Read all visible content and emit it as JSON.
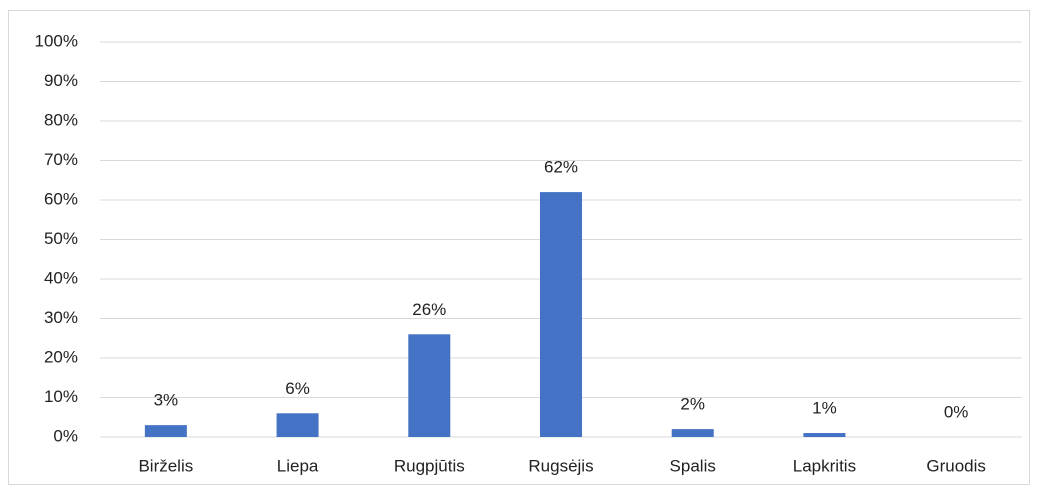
{
  "chart_data": {
    "type": "bar",
    "categories": [
      "Birželis",
      "Liepa",
      "Rugpjūtis",
      "Rugsėjis",
      "Spalis",
      "Lapkritis",
      "Gruodis"
    ],
    "values": [
      3,
      6,
      26,
      62,
      2,
      1,
      0
    ],
    "value_labels": [
      "3%",
      "6%",
      "26%",
      "62%",
      "2%",
      "1%",
      "0%"
    ],
    "color": "#4472c4",
    "ylim": [
      0,
      100
    ],
    "yticks": [
      {
        "value": 0,
        "label": "0%"
      },
      {
        "value": 10,
        "label": "10%"
      },
      {
        "value": 20,
        "label": "20%"
      },
      {
        "value": 30,
        "label": "30%"
      },
      {
        "value": 40,
        "label": "40%"
      },
      {
        "value": 50,
        "label": "50%"
      },
      {
        "value": 60,
        "label": "60%"
      },
      {
        "value": 70,
        "label": "70%"
      },
      {
        "value": 80,
        "label": "80%"
      },
      {
        "value": 90,
        "label": "90%"
      },
      {
        "value": 100,
        "label": "100%"
      }
    ],
    "grid": true
  }
}
